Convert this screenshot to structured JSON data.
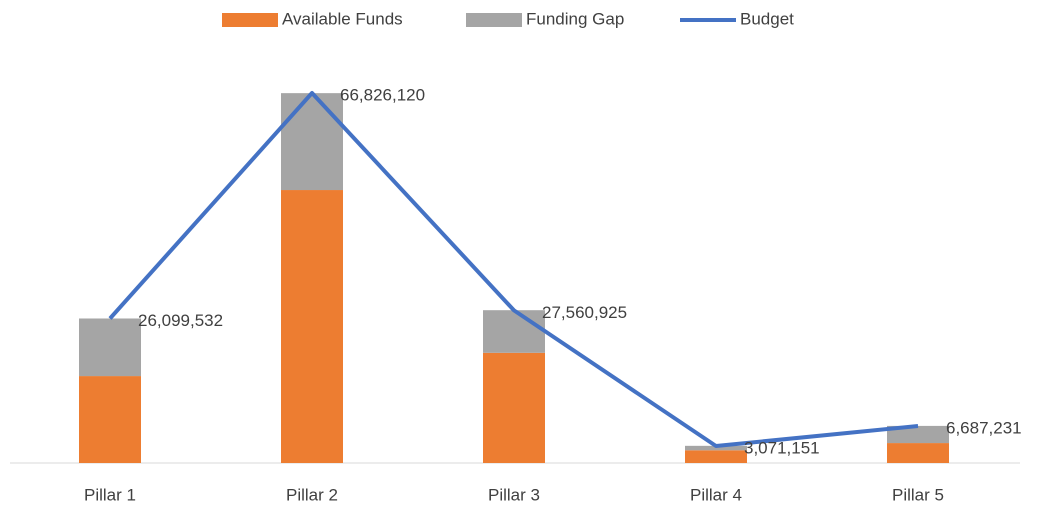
{
  "chart_data": {
    "type": "bar",
    "categories": [
      "Pillar 1",
      "Pillar 2",
      "Pillar 3",
      "Pillar 4",
      "Pillar 5"
    ],
    "series": [
      {
        "name": "Available Funds",
        "color": "#ed7d31",
        "type": "bar",
        "values": [
          15700000,
          49300000,
          19900000,
          2300000,
          3600000
        ]
      },
      {
        "name": "Funding Gap",
        "color": "#a5a5a5",
        "type": "bar",
        "values": [
          10400000,
          17500000,
          7700000,
          800000,
          3100000
        ]
      },
      {
        "name": "Budget",
        "color": "#4472c4",
        "type": "line",
        "values": [
          26099532,
          66826120,
          27560925,
          3071151,
          6687231
        ],
        "value_labels": [
          "26,099,532",
          "66,826,120",
          "27,560,925",
          "3,071,151",
          "6,687,231"
        ]
      }
    ]
  }
}
